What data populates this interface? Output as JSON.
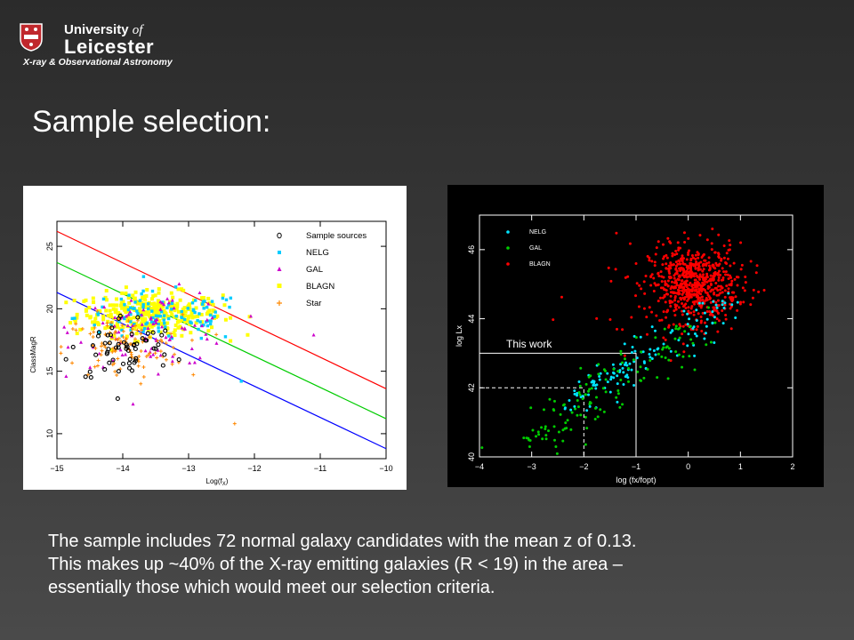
{
  "header": {
    "org_line1": "University",
    "org_line1_of": "of",
    "org_line2": "Leicester",
    "subtitle": "X-ray & Observational Astronomy"
  },
  "slide": {
    "title": "Sample selection:",
    "body_lines": [
      "The sample includes 72 normal galaxy candidates with the mean z of 0.13.",
      "This makes up ~40% of the X-ray emitting galaxies (R < 19) in the area –",
      "essentially those which would meet our selection criteria."
    ]
  },
  "chart_data": [
    {
      "type": "scatter",
      "xlabel": "Log(f",
      "xlabel_sub": "X",
      "xlabel_close": ")",
      "ylabel": "ClassMagR",
      "xlim": [
        -15,
        -10
      ],
      "ylim": [
        8,
        27
      ],
      "x_ticks": [
        "−15",
        "−14",
        "−13",
        "−12",
        "−11",
        "−10"
      ],
      "y_ticks": [
        "10",
        "15",
        "20",
        "25"
      ],
      "legend": [
        "Sample sources",
        "NELG",
        "GAL",
        "BLAGN",
        "Star"
      ],
      "legend_placement": "top-right",
      "colors": {
        "sample": "#000000",
        "nelg": "#00ccff",
        "gal": "#cc00cc",
        "blagn": "#ffff00",
        "star": "#ff8800",
        "red_line": "#ff0000",
        "green_line": "#00cc00",
        "blue_line": "#0000ff"
      },
      "lines": [
        {
          "color": "red",
          "x": [
            -15,
            -10
          ],
          "y": [
            26.2,
            13.6
          ]
        },
        {
          "color": "green",
          "x": [
            -15,
            -10
          ],
          "y": [
            23.7,
            11.2
          ]
        },
        {
          "color": "blue",
          "x": [
            -15,
            -10
          ],
          "y": [
            21.3,
            8.8
          ]
        }
      ]
    },
    {
      "type": "scatter",
      "xlabel": "log (fx/fopt)",
      "ylabel": "log Lx",
      "xlim": [
        -4,
        2
      ],
      "ylim": [
        40,
        47
      ],
      "x_ticks": [
        "−4",
        "−3",
        "−2",
        "−1",
        "0",
        "1",
        "2"
      ],
      "y_ticks": [
        "40",
        "42",
        "44",
        "46"
      ],
      "legend": [
        "NELG",
        "GAL",
        "BLAGN"
      ],
      "legend_placement": "top-left",
      "annotation": "This work",
      "colors": {
        "nelg": "#00e5ff",
        "gal": "#00cc00",
        "blagn": "#ff0000",
        "box": "#ffffff"
      },
      "selection_box": {
        "x": [
          -4,
          -1
        ],
        "y": [
          40,
          43
        ]
      },
      "dashed_box": {
        "x": [
          -4,
          -2
        ],
        "y": [
          40,
          42
        ]
      }
    }
  ]
}
